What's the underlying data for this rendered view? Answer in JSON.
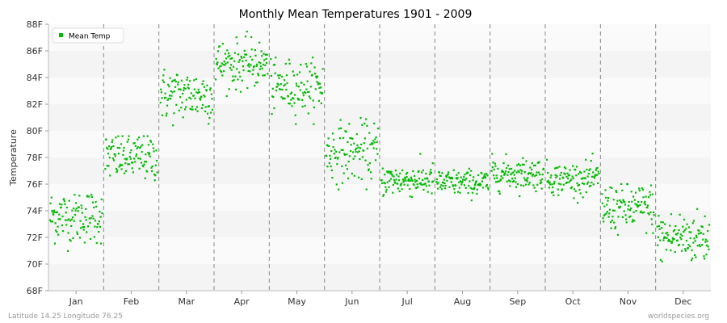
{
  "chart_data": {
    "type": "scatter",
    "title": "Monthly Mean Temperatures 1901 - 2009",
    "xlabel": "",
    "ylabel": "Temperature",
    "ylim": [
      68,
      88
    ],
    "y_ticks": [
      "68F",
      "70F",
      "72F",
      "74F",
      "76F",
      "78F",
      "80F",
      "82F",
      "84F",
      "86F",
      "88F"
    ],
    "categories": [
      "Jan",
      "Feb",
      "Mar",
      "Apr",
      "May",
      "Jun",
      "Jul",
      "Aug",
      "Sep",
      "Oct",
      "Nov",
      "Dec"
    ],
    "series": [
      {
        "name": "Mean Temp",
        "color": "#00bb00",
        "years": "1901-2009",
        "monthly_mean": [
          73.6,
          78.0,
          82.7,
          85.0,
          83.3,
          78.4,
          76.3,
          76.1,
          76.8,
          76.4,
          74.2,
          72.0
        ],
        "monthly_spread": [
          1.0,
          0.9,
          1.0,
          0.9,
          1.0,
          1.1,
          0.6,
          0.5,
          0.6,
          0.6,
          0.9,
          1.0
        ],
        "monthly_min": [
          70.9,
          75.0,
          80.2,
          82.6,
          80.5,
          75.6,
          74.1,
          74.3,
          74.8,
          74.6,
          71.2,
          68.9
        ],
        "monthly_max": [
          75.2,
          79.6,
          84.7,
          87.5,
          85.5,
          81.4,
          78.4,
          78.1,
          79.0,
          79.0,
          76.0,
          74.8
        ]
      }
    ],
    "grid": "horizontal bands, dashed vertical month separators",
    "legend_position": "top-left"
  },
  "footer": {
    "left": "Latitude 14.25 Longitude 76.25",
    "right": "worldspecies.org"
  }
}
